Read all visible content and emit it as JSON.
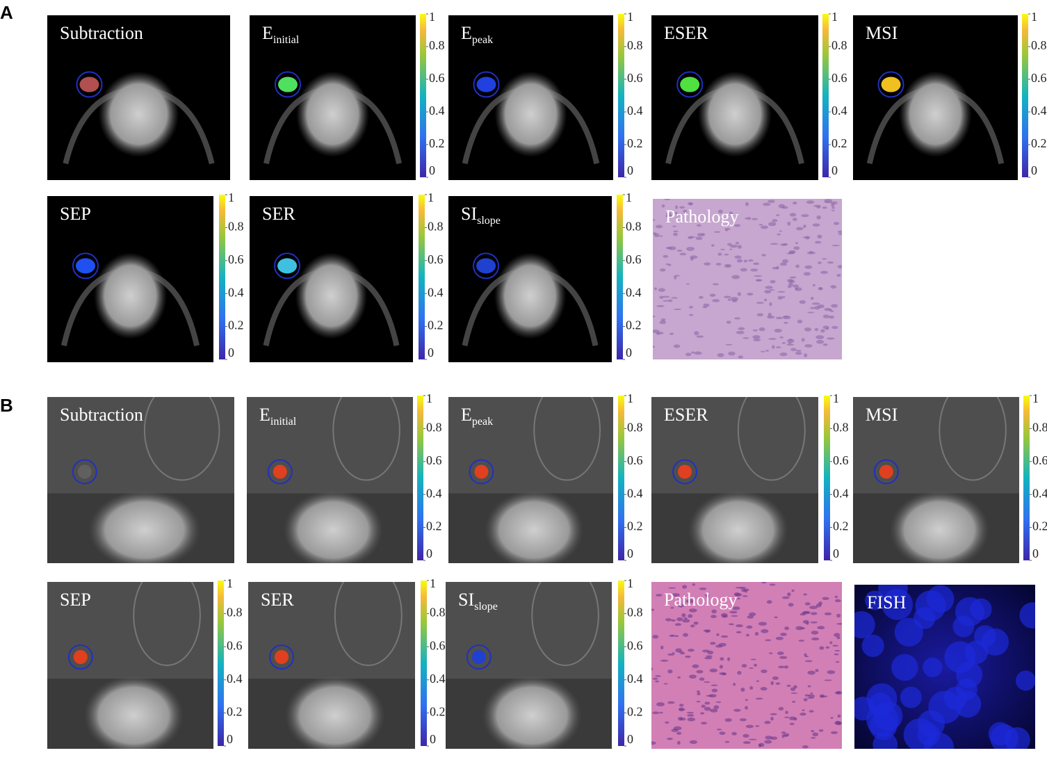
{
  "panels": [
    {
      "label": "A",
      "tiles": [
        {
          "title": "Subtraction"
        },
        {
          "title": "E",
          "subscript": "initial"
        },
        {
          "title": "E",
          "subscript": "peak"
        },
        {
          "title": "ESER"
        },
        {
          "title": "MSI"
        },
        {
          "title": "SEP"
        },
        {
          "title": "SER"
        },
        {
          "title": "SI",
          "subscript": "slope"
        },
        {
          "title": "Pathology"
        }
      ]
    },
    {
      "label": "B",
      "tiles": [
        {
          "title": "Subtraction"
        },
        {
          "title": "E",
          "subscript": "initial"
        },
        {
          "title": "E",
          "subscript": "peak"
        },
        {
          "title": "ESER"
        },
        {
          "title": "MSI"
        },
        {
          "title": "SEP"
        },
        {
          "title": "SER"
        },
        {
          "title": "SI",
          "subscript": "slope"
        },
        {
          "title": "Pathology"
        },
        {
          "title": "FISH"
        }
      ]
    }
  ],
  "colorbar": {
    "lim": [
      0,
      1
    ],
    "ticks": [
      0,
      0.2,
      0.4,
      0.6,
      0.8,
      1
    ]
  }
}
